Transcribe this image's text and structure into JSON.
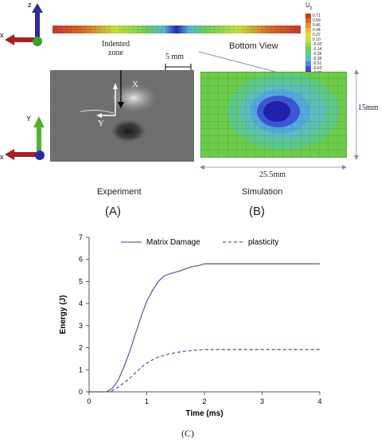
{
  "figure": {
    "top_view_label": "Bottom View",
    "indented_label_line1": "Indented",
    "indented_label_line2": "zone",
    "scale_bar": "5 mm",
    "photo_axis_x": "X",
    "photo_axis_y": "Y",
    "dim_height": "15mm",
    "dim_width": "25.5mm",
    "caption_left": "Experiment",
    "caption_right": "Simulation",
    "panel_a": "(A)",
    "panel_b": "(B)",
    "panel_c": "(C)",
    "triad_top": {
      "z": "z",
      "x": "x"
    },
    "triad_bottom": {
      "y": "Y",
      "x": "x"
    },
    "legend_title": "U",
    "legend_title_sub": "z",
    "legend_values": [
      "0.71",
      "0.59",
      "0.46",
      "0.34",
      "0.22",
      "0.10",
      "-0.02",
      "-0.14",
      "-0.26",
      "-0.39",
      "-0.51",
      "-0.63",
      "-0.75"
    ],
    "legend_colors": [
      "#c8382c",
      "#d9682a",
      "#e59332",
      "#ecb93a",
      "#e8d83e",
      "#c6e23e",
      "#96d848",
      "#6fcf5a",
      "#5cc8a6",
      "#58b8d8",
      "#4f8de4",
      "#3d56d8",
      "#2a2ab8"
    ]
  },
  "chart_data": {
    "type": "line",
    "title": "",
    "xlabel": "Time (ms)",
    "ylabel": "Energy (J)",
    "xlim": [
      0,
      4
    ],
    "ylim": [
      0,
      7
    ],
    "xticks": [
      0,
      1,
      2,
      3,
      4
    ],
    "yticks": [
      0,
      1,
      2,
      3,
      4,
      5,
      6,
      7
    ],
    "legend_position": "top",
    "series": [
      {
        "name": "Matrix Damage",
        "style": "solid",
        "color": "#6a5aa8",
        "x": [
          0,
          0.3,
          0.4,
          0.5,
          0.6,
          0.7,
          0.8,
          0.9,
          1.0,
          1.1,
          1.2,
          1.3,
          1.4,
          1.5,
          1.6,
          1.7,
          1.8,
          1.9,
          2.0,
          2.5,
          3.0,
          3.5,
          4.0
        ],
        "y": [
          0,
          0,
          0.15,
          0.5,
          1.1,
          1.8,
          2.6,
          3.4,
          4.1,
          4.6,
          5.0,
          5.25,
          5.35,
          5.42,
          5.5,
          5.6,
          5.68,
          5.72,
          5.8,
          5.8,
          5.8,
          5.8,
          5.8
        ]
      },
      {
        "name": "plasticity",
        "style": "dashed",
        "color": "#4a62a8",
        "x": [
          0,
          0.3,
          0.4,
          0.5,
          0.6,
          0.7,
          0.8,
          0.9,
          1.0,
          1.1,
          1.2,
          1.4,
          1.6,
          1.8,
          2.0,
          2.5,
          3.0,
          3.5,
          4.0
        ],
        "y": [
          0,
          0,
          0.05,
          0.2,
          0.4,
          0.6,
          0.85,
          1.1,
          1.3,
          1.45,
          1.58,
          1.72,
          1.82,
          1.88,
          1.92,
          1.92,
          1.92,
          1.92,
          1.92
        ]
      }
    ]
  }
}
